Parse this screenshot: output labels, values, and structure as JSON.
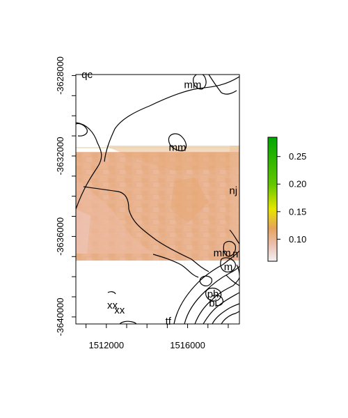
{
  "map": {
    "x_axis": {
      "ticks": [
        1512000,
        1516000
      ],
      "tick_labels": [
        "1512000",
        "1516000"
      ],
      "range": [
        1510500,
        1518550
      ]
    },
    "y_axis": {
      "ticks": [
        -3628000,
        -3632000,
        -3636000,
        -3640000
      ],
      "tick_labels": [
        "-3628000",
        "-3632000",
        "-3636000",
        "-3640000"
      ],
      "range": [
        -3640350,
        -3627950
      ]
    },
    "raster": {
      "y_top": -3631800,
      "y_bottom": -3637200,
      "dominant_value": 0.11,
      "colormap": "terrain (reversed)"
    },
    "colorbar": {
      "min": 0.06,
      "max": 0.285,
      "ticks": [
        0.1,
        0.15,
        0.2,
        0.25
      ],
      "tick_labels": [
        "0.10",
        "0.15",
        "0.20",
        "0.25"
      ],
      "stops": [
        {
          "value": 0.06,
          "color": "#f2f2f2"
        },
        {
          "value": 0.09,
          "color": "#ecc0b0"
        },
        {
          "value": 0.12,
          "color": "#e6a35c"
        },
        {
          "value": 0.155,
          "color": "#e6e600"
        },
        {
          "value": 0.2,
          "color": "#63c600"
        },
        {
          "value": 0.285,
          "color": "#00a600"
        }
      ]
    },
    "labels": [
      {
        "text": "qc",
        "x": 1511050,
        "y": -3627980
      },
      {
        "text": "mm",
        "x": 1516250,
        "y": -3628480
      },
      {
        "text": "mm",
        "x": 1515500,
        "y": -3631600
      },
      {
        "text": "nj",
        "x": 1518250,
        "y": -3633750
      },
      {
        "text": "mm",
        "x": 1517700,
        "y": -3636850
      },
      {
        "text": "n",
        "x": 1518350,
        "y": -3636900
      },
      {
        "text": "m",
        "x": 1518000,
        "y": -3637550
      },
      {
        "text": "ph",
        "x": 1517250,
        "y": -3638900
      },
      {
        "text": "bi",
        "x": 1517250,
        "y": -3639350
      },
      {
        "text": "xx",
        "x": 1512300,
        "y": -3639450
      },
      {
        "text": "xx",
        "x": 1512650,
        "y": -3639700
      },
      {
        "text": "tf",
        "x": 1515050,
        "y": -3640250
      }
    ]
  }
}
